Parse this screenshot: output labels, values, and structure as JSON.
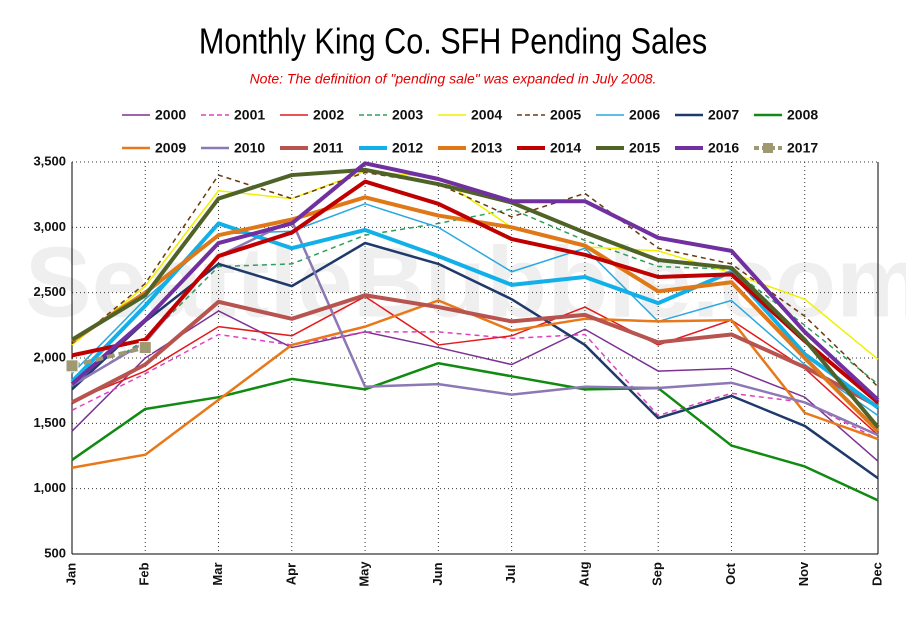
{
  "chart_data": {
    "type": "line",
    "title": "Monthly King Co. SFH Pending Sales",
    "subtitle": "Note: The definition of \"pending sale\" was expanded in July 2008.",
    "watermark": "SeattleBubble.com",
    "categories": [
      "Jan",
      "Feb",
      "Mar",
      "Apr",
      "May",
      "Jun",
      "Jul",
      "Aug",
      "Sep",
      "Oct",
      "Nov",
      "Dec"
    ],
    "ylim": [
      500,
      3500
    ],
    "yticks": [
      500,
      {
        "value": 1000,
        "label": "1,000"
      },
      {
        "value": 1500,
        "label": "1,500"
      },
      {
        "value": 2000,
        "label": "2,000"
      },
      {
        "value": 2500,
        "label": "2,500"
      },
      {
        "value": 3000,
        "label": "3,000"
      },
      {
        "value": 3500,
        "label": "3,500"
      }
    ],
    "grid": true,
    "series": [
      {
        "name": "2000",
        "color": "#7b3294",
        "width": 1.5,
        "dash": false,
        "values": [
          1440,
          2000,
          2360,
          2080,
          2200,
          2080,
          1950,
          2220,
          1900,
          1920,
          1700,
          1210
        ]
      },
      {
        "name": "2001",
        "color": "#e040c0",
        "width": 1.5,
        "dash": true,
        "values": [
          1600,
          1880,
          2180,
          2100,
          2200,
          2200,
          2150,
          2180,
          1560,
          1730,
          1660,
          1380
        ]
      },
      {
        "name": "2002",
        "color": "#e41a1c",
        "width": 1.5,
        "dash": false,
        "values": [
          1670,
          1900,
          2240,
          2170,
          2470,
          2100,
          2170,
          2390,
          2100,
          2290,
          1920,
          1410
        ]
      },
      {
        "name": "2003",
        "color": "#2ca05a",
        "width": 1.5,
        "dash": true,
        "values": [
          1780,
          2140,
          2700,
          2720,
          2940,
          3030,
          3140,
          2900,
          2700,
          2680,
          2250,
          1800
        ]
      },
      {
        "name": "2004",
        "color": "#f0f000",
        "width": 1.5,
        "dash": false,
        "values": [
          2100,
          2550,
          3280,
          3220,
          3430,
          3380,
          3000,
          2850,
          2820,
          2650,
          2450,
          1990
        ]
      },
      {
        "name": "2005",
        "color": "#6b3a10",
        "width": 1.5,
        "dash": true,
        "values": [
          2110,
          2570,
          3400,
          3220,
          3420,
          3330,
          3080,
          3260,
          2840,
          2720,
          2320,
          1780
        ]
      },
      {
        "name": "2006",
        "color": "#2aa8e0",
        "width": 1.5,
        "dash": false,
        "values": [
          1880,
          2450,
          2950,
          2970,
          3180,
          3000,
          2660,
          2840,
          2280,
          2440,
          1950,
          1560
        ]
      },
      {
        "name": "2007",
        "color": "#1f3a6a",
        "width": 2.5,
        "dash": false,
        "values": [
          1760,
          2280,
          2720,
          2550,
          2880,
          2720,
          2450,
          2100,
          1540,
          1710,
          1480,
          1080
        ]
      },
      {
        "name": "2008",
        "color": "#108a10",
        "width": 2.5,
        "dash": false,
        "values": [
          1220,
          1610,
          1700,
          1840,
          1760,
          1960,
          1860,
          1760,
          1770,
          1330,
          1170,
          910
        ]
      },
      {
        "name": "2009",
        "color": "#e87818",
        "width": 2.5,
        "dash": false,
        "values": [
          1160,
          1260,
          1680,
          2100,
          2240,
          2440,
          2210,
          2300,
          2280,
          2290,
          1580,
          1380
        ]
      },
      {
        "name": "2010",
        "color": "#8c78b4",
        "width": 2.5,
        "dash": false,
        "values": [
          1790,
          2120,
          2780,
          3050,
          1780,
          1800,
          1720,
          1780,
          1770,
          1810,
          1660,
          1410
        ]
      },
      {
        "name": "2011",
        "color": "#b85450",
        "width": 4,
        "dash": false,
        "values": [
          1660,
          1950,
          2430,
          2300,
          2480,
          2390,
          2280,
          2330,
          2120,
          2180,
          1930,
          1630
        ]
      },
      {
        "name": "2012",
        "color": "#12b0e8",
        "width": 4,
        "dash": false,
        "values": [
          1820,
          2400,
          3030,
          2840,
          2980,
          2780,
          2560,
          2620,
          2420,
          2660,
          2030,
          1620
        ]
      },
      {
        "name": "2013",
        "color": "#e07818",
        "width": 4,
        "dash": false,
        "values": [
          2130,
          2500,
          2940,
          3060,
          3230,
          3090,
          3000,
          2860,
          2510,
          2580,
          2000,
          1440
        ]
      },
      {
        "name": "2014",
        "color": "#c00000",
        "width": 4,
        "dash": false,
        "values": [
          2020,
          2140,
          2780,
          2960,
          3350,
          3180,
          2910,
          2790,
          2620,
          2640,
          2130,
          1660
        ]
      },
      {
        "name": "2015",
        "color": "#4f6228",
        "width": 4,
        "dash": false,
        "values": [
          2140,
          2480,
          3220,
          3400,
          3440,
          3330,
          3190,
          2960,
          2750,
          2690,
          2140,
          1470
        ]
      },
      {
        "name": "2016",
        "color": "#7030a0",
        "width": 4,
        "dash": false,
        "values": [
          1800,
          2290,
          2880,
          3030,
          3490,
          3370,
          3200,
          3200,
          2920,
          2820,
          2200,
          1680
        ]
      },
      {
        "name": "2017",
        "color": "#a09870",
        "width": 4,
        "dash": true,
        "marker": "square",
        "values": [
          1940,
          2080,
          null,
          null,
          null,
          null,
          null,
          null,
          null,
          null,
          null,
          null
        ]
      }
    ]
  }
}
